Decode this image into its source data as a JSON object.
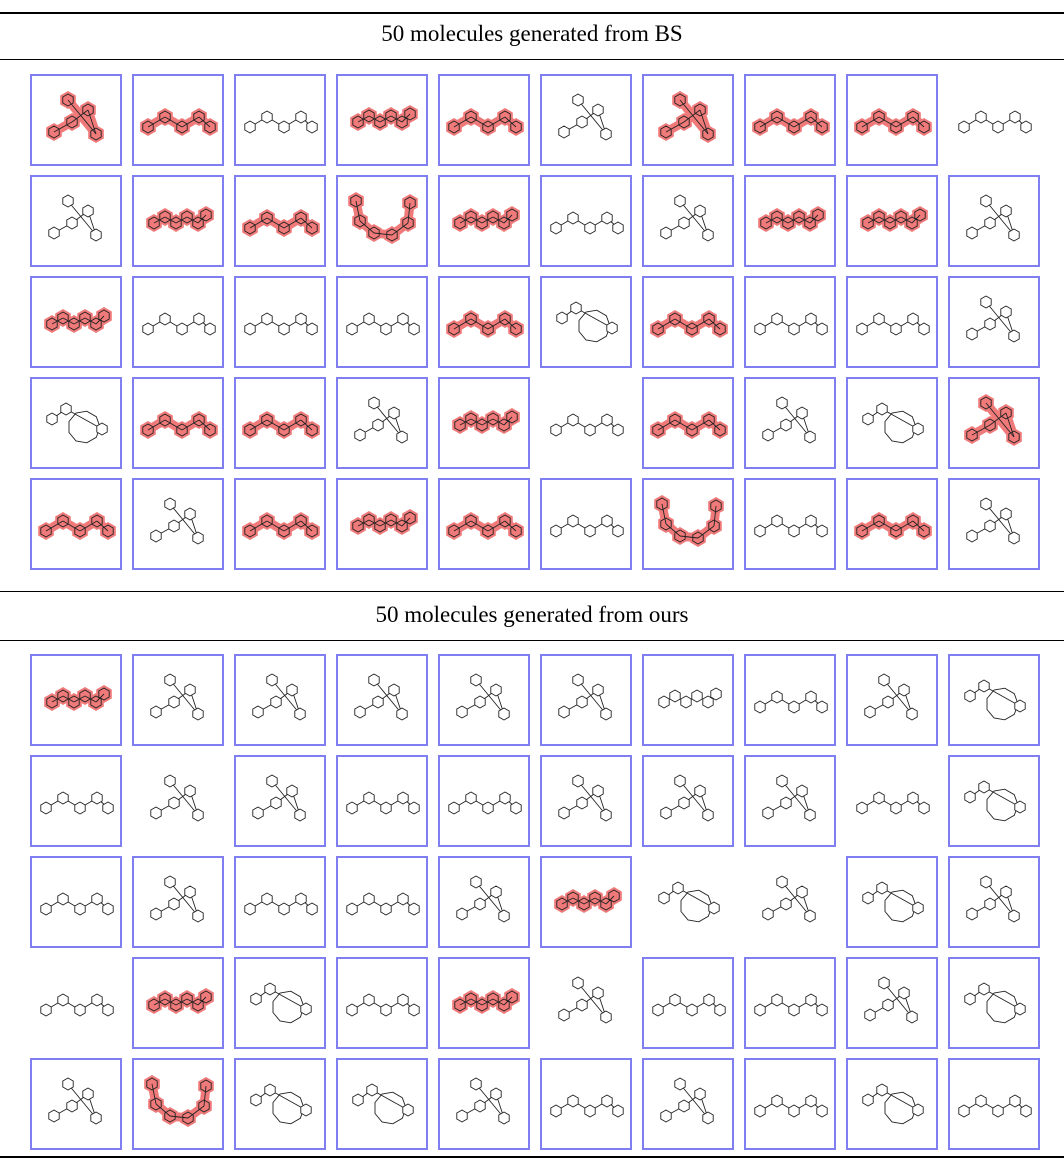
{
  "sections": [
    {
      "title": "50 molecules generated from BS",
      "colors": {
        "border": "#7f7ff2",
        "highlight": "#f07a7a",
        "bond": "#222222"
      },
      "molecules": [
        {
          "h": 1,
          "s": "branched"
        },
        {
          "h": 1,
          "s": "linear"
        },
        {
          "h": 0,
          "s": "linear"
        },
        {
          "h": 1,
          "s": "fused"
        },
        {
          "h": 1,
          "s": "linear"
        },
        {
          "h": 0,
          "s": "branched"
        },
        {
          "h": 1,
          "s": "branched"
        },
        {
          "h": 1,
          "s": "linear"
        },
        {
          "h": 1,
          "s": "linear"
        },
        {
          "h": 0,
          "s": "linear",
          "nb": 1
        },
        {
          "h": 0,
          "s": "branched"
        },
        {
          "h": 1,
          "s": "fused"
        },
        {
          "h": 1,
          "s": "linear"
        },
        {
          "h": 1,
          "s": "ushape"
        },
        {
          "h": 1,
          "s": "fused"
        },
        {
          "h": 0,
          "s": "linear"
        },
        {
          "h": 0,
          "s": "branched"
        },
        {
          "h": 1,
          "s": "fused"
        },
        {
          "h": 1,
          "s": "fused"
        },
        {
          "h": 0,
          "s": "branched"
        },
        {
          "h": 1,
          "s": "fused"
        },
        {
          "h": 0,
          "s": "linear"
        },
        {
          "h": 0,
          "s": "linear"
        },
        {
          "h": 0,
          "s": "linear"
        },
        {
          "h": 1,
          "s": "linear"
        },
        {
          "h": 0,
          "s": "macro"
        },
        {
          "h": 1,
          "s": "linear"
        },
        {
          "h": 0,
          "s": "linear"
        },
        {
          "h": 0,
          "s": "linear"
        },
        {
          "h": 0,
          "s": "branched"
        },
        {
          "h": 0,
          "s": "macro"
        },
        {
          "h": 1,
          "s": "linear"
        },
        {
          "h": 1,
          "s": "linear"
        },
        {
          "h": 0,
          "s": "branched"
        },
        {
          "h": 1,
          "s": "fused"
        },
        {
          "h": 0,
          "s": "linear",
          "nb": 1
        },
        {
          "h": 1,
          "s": "linear"
        },
        {
          "h": 0,
          "s": "branched"
        },
        {
          "h": 0,
          "s": "macro"
        },
        {
          "h": 1,
          "s": "branched"
        },
        {
          "h": 1,
          "s": "linear"
        },
        {
          "h": 0,
          "s": "branched"
        },
        {
          "h": 1,
          "s": "linear"
        },
        {
          "h": 1,
          "s": "fused"
        },
        {
          "h": 1,
          "s": "linear"
        },
        {
          "h": 0,
          "s": "linear"
        },
        {
          "h": 1,
          "s": "ushape"
        },
        {
          "h": 0,
          "s": "linear"
        },
        {
          "h": 1,
          "s": "linear"
        },
        {
          "h": 0,
          "s": "branched"
        }
      ]
    },
    {
      "title": "50 molecules generated from ours",
      "colors": {
        "border": "#7f7ff2",
        "highlight": "#f07a7a",
        "bond": "#222222"
      },
      "molecules": [
        {
          "h": 1,
          "s": "fused"
        },
        {
          "h": 0,
          "s": "branched"
        },
        {
          "h": 0,
          "s": "branched"
        },
        {
          "h": 0,
          "s": "branched"
        },
        {
          "h": 0,
          "s": "branched"
        },
        {
          "h": 0,
          "s": "branched"
        },
        {
          "h": 0,
          "s": "fused"
        },
        {
          "h": 0,
          "s": "linear"
        },
        {
          "h": 0,
          "s": "branched"
        },
        {
          "h": 0,
          "s": "macro"
        },
        {
          "h": 0,
          "s": "linear"
        },
        {
          "h": 0,
          "s": "branched",
          "nb": 1
        },
        {
          "h": 0,
          "s": "branched"
        },
        {
          "h": 0,
          "s": "linear"
        },
        {
          "h": 0,
          "s": "linear"
        },
        {
          "h": 0,
          "s": "branched"
        },
        {
          "h": 0,
          "s": "branched"
        },
        {
          "h": 0,
          "s": "branched"
        },
        {
          "h": 0,
          "s": "linear",
          "nb": 1
        },
        {
          "h": 0,
          "s": "macro"
        },
        {
          "h": 0,
          "s": "linear"
        },
        {
          "h": 0,
          "s": "branched"
        },
        {
          "h": 0,
          "s": "linear"
        },
        {
          "h": 0,
          "s": "linear"
        },
        {
          "h": 0,
          "s": "branched"
        },
        {
          "h": 1,
          "s": "fused"
        },
        {
          "h": 0,
          "s": "macro",
          "nb": 1
        },
        {
          "h": 0,
          "s": "branched",
          "nb": 1
        },
        {
          "h": 0,
          "s": "macro"
        },
        {
          "h": 0,
          "s": "branched"
        },
        {
          "h": 0,
          "s": "linear",
          "nb": 1
        },
        {
          "h": 1,
          "s": "fused"
        },
        {
          "h": 0,
          "s": "macro"
        },
        {
          "h": 0,
          "s": "linear"
        },
        {
          "h": 1,
          "s": "fused"
        },
        {
          "h": 0,
          "s": "branched",
          "nb": 1
        },
        {
          "h": 0,
          "s": "linear"
        },
        {
          "h": 0,
          "s": "linear"
        },
        {
          "h": 0,
          "s": "branched"
        },
        {
          "h": 0,
          "s": "macro"
        },
        {
          "h": 0,
          "s": "branched"
        },
        {
          "h": 1,
          "s": "ushape"
        },
        {
          "h": 0,
          "s": "macro"
        },
        {
          "h": 0,
          "s": "macro"
        },
        {
          "h": 0,
          "s": "branched"
        },
        {
          "h": 0,
          "s": "linear"
        },
        {
          "h": 0,
          "s": "branched"
        },
        {
          "h": 0,
          "s": "linear"
        },
        {
          "h": 0,
          "s": "macro"
        },
        {
          "h": 0,
          "s": "linear"
        }
      ]
    }
  ]
}
